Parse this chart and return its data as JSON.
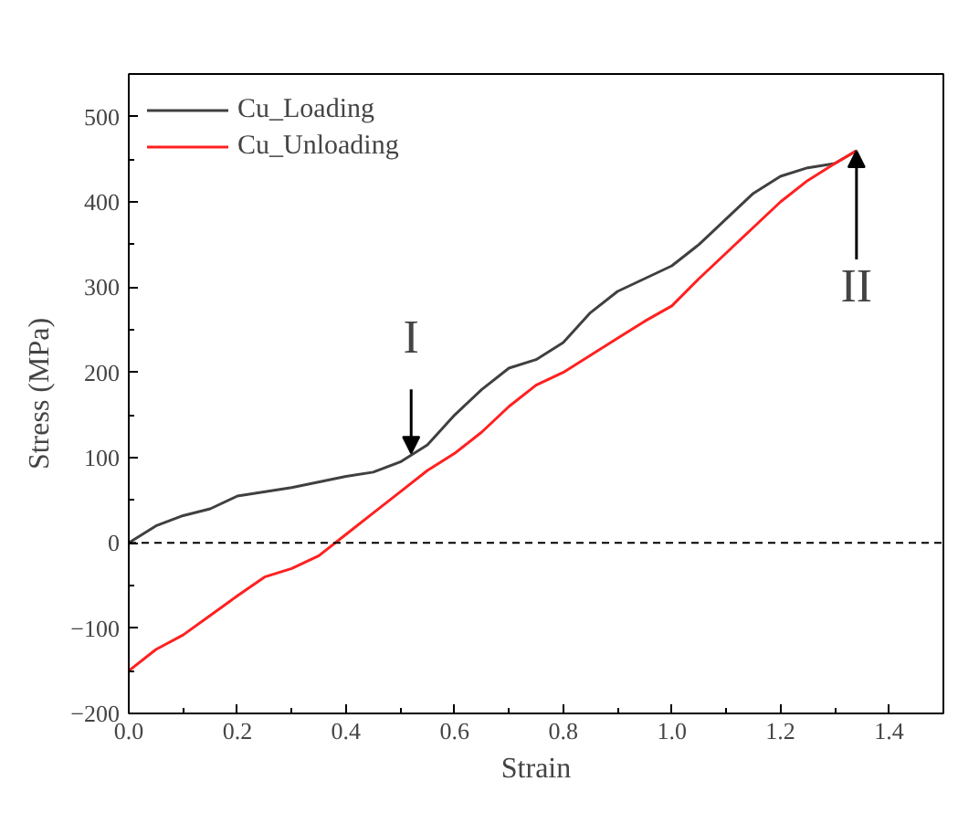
{
  "chart_data": {
    "type": "line",
    "xlabel": "Strain",
    "ylabel": "Stress (MPa)",
    "xlim": [
      0.0,
      1.5
    ],
    "xticks": [
      {
        "value": 0.0,
        "label": "0.0"
      },
      0.2,
      0.4,
      0.6,
      0.8,
      {
        "value": 1.0,
        "label": "1.0"
      },
      1.2,
      1.4
    ],
    "ylim": [
      -200,
      550
    ],
    "yticks": [
      -200,
      -100,
      0,
      100,
      200,
      300,
      400,
      500
    ],
    "grid": false,
    "legend": "top left",
    "line_style": "solid",
    "marker": "none",
    "ref_lines": [
      {
        "axis": "y",
        "value": 0,
        "color": "#000000",
        "line_style": "dashed"
      }
    ],
    "annotations": [
      {
        "text": "I",
        "x": 0.52,
        "y": 105
      },
      {
        "text": "II",
        "x": 1.34,
        "y": 460
      }
    ],
    "series": [
      {
        "name": "Cu_Loading",
        "color": "#404040",
        "x": [
          0,
          0.05,
          0.1,
          0.15,
          0.2,
          0.3,
          0.4,
          0.45,
          0.5,
          0.55,
          0.6,
          0.65,
          0.7,
          0.75,
          0.8,
          0.85,
          0.9,
          0.95,
          1.0,
          1.05,
          1.1,
          1.15,
          1.2,
          1.25,
          1.3,
          1.34
        ],
        "values": [
          0,
          20,
          32,
          40,
          55,
          65,
          78,
          83,
          95,
          115,
          150,
          180,
          205,
          215,
          235,
          270,
          295,
          310,
          325,
          350,
          380,
          410,
          430,
          440,
          445,
          460
        ]
      },
      {
        "name": "Cu_Unloading",
        "color": "#ff2020",
        "x": [
          0,
          0.05,
          0.1,
          0.15,
          0.2,
          0.25,
          0.3,
          0.35,
          0.4,
          0.45,
          0.5,
          0.55,
          0.6,
          0.65,
          0.7,
          0.75,
          0.8,
          0.85,
          0.9,
          0.95,
          1.0,
          1.05,
          1.1,
          1.15,
          1.2,
          1.25,
          1.3,
          1.34
        ],
        "values": [
          -150,
          -125,
          -108,
          -85,
          -62,
          -40,
          -30,
          -15,
          10,
          35,
          60,
          85,
          105,
          130,
          160,
          185,
          200,
          220,
          240,
          260,
          278,
          310,
          340,
          370,
          400,
          425,
          445,
          460
        ]
      }
    ]
  }
}
